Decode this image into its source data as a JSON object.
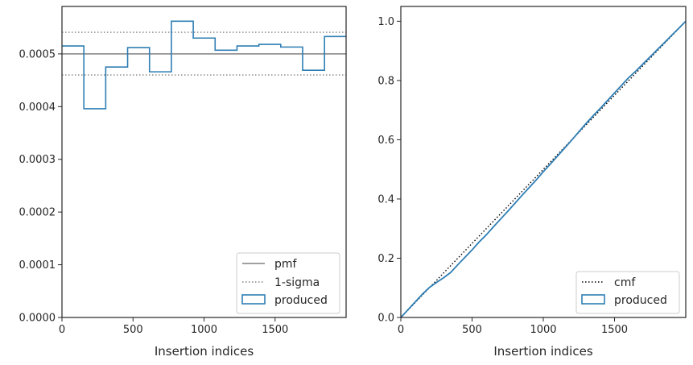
{
  "chart_data": [
    {
      "type": "histogram",
      "xlabel": "Insertion indices",
      "ylabel": "",
      "xlim": [
        0,
        2000
      ],
      "ylim": [
        0,
        0.00059
      ],
      "x_ticks": [
        0,
        500,
        1000,
        1500
      ],
      "x_tick_labels": [
        "0",
        "500",
        "1000",
        "1500"
      ],
      "y_ticks": [
        0,
        0.0001,
        0.0002,
        0.0003,
        0.0004,
        0.0005
      ],
      "y_tick_labels": [
        "0.0000",
        "0.0001",
        "0.0002",
        "0.0003",
        "0.0004",
        "0.0005"
      ],
      "grid": false,
      "legend_position": "lower-right",
      "legend": [
        "pmf",
        "1-sigma",
        "produced"
      ],
      "bin_edges": [
        0,
        154,
        308,
        462,
        616,
        770,
        924,
        1078,
        1232,
        1386,
        1540,
        1694,
        1848,
        2000
      ],
      "bin_values": [
        0.000515,
        0.000396,
        0.000475,
        0.000512,
        0.000466,
        0.000562,
        0.00053,
        0.000507,
        0.000515,
        0.000518,
        0.000513,
        0.000469,
        0.000533
      ],
      "pmf": 0.0005,
      "sigma_upper": 0.000541,
      "sigma_lower": 0.00046,
      "colors": {
        "produced": "#2e7eb4",
        "pmf": "#808080",
        "sigma": "#808080"
      }
    },
    {
      "type": "line",
      "xlabel": "Insertion indices",
      "ylabel": "",
      "xlim": [
        0,
        2000
      ],
      "ylim": [
        0,
        1.05
      ],
      "x_ticks": [
        0,
        500,
        1000,
        1500
      ],
      "x_tick_labels": [
        "0",
        "500",
        "1000",
        "1500"
      ],
      "y_ticks": [
        0,
        0.2,
        0.4,
        0.6,
        0.8,
        1.0
      ],
      "y_tick_labels": [
        "0.0",
        "0.2",
        "0.4",
        "0.6",
        "0.8",
        "1.0"
      ],
      "grid": false,
      "legend_position": "lower-right",
      "legend": [
        "cmf",
        "produced"
      ],
      "cmf": {
        "x": [
          0,
          2000
        ],
        "y": [
          0,
          1.0
        ]
      },
      "produced": {
        "x": [
          0,
          50,
          100,
          150,
          200,
          250,
          300,
          350,
          400,
          450,
          500,
          550,
          600,
          650,
          700,
          750,
          800,
          850,
          900,
          950,
          1000,
          1050,
          1100,
          1150,
          1200,
          1250,
          1300,
          1350,
          1400,
          1450,
          1500,
          1550,
          1600,
          1650,
          1700,
          1750,
          1800,
          1850,
          1900,
          1950,
          2000
        ],
        "y": [
          0,
          0.026,
          0.052,
          0.078,
          0.101,
          0.118,
          0.134,
          0.152,
          0.178,
          0.203,
          0.228,
          0.255,
          0.279,
          0.306,
          0.332,
          0.358,
          0.385,
          0.412,
          0.438,
          0.464,
          0.492,
          0.518,
          0.545,
          0.572,
          0.599,
          0.627,
          0.655,
          0.681,
          0.706,
          0.732,
          0.758,
          0.784,
          0.81,
          0.832,
          0.856,
          0.88,
          0.904,
          0.928,
          0.952,
          0.976,
          1.0
        ]
      },
      "colors": {
        "produced": "#2e7eb4",
        "cmf": "#000000"
      }
    }
  ]
}
